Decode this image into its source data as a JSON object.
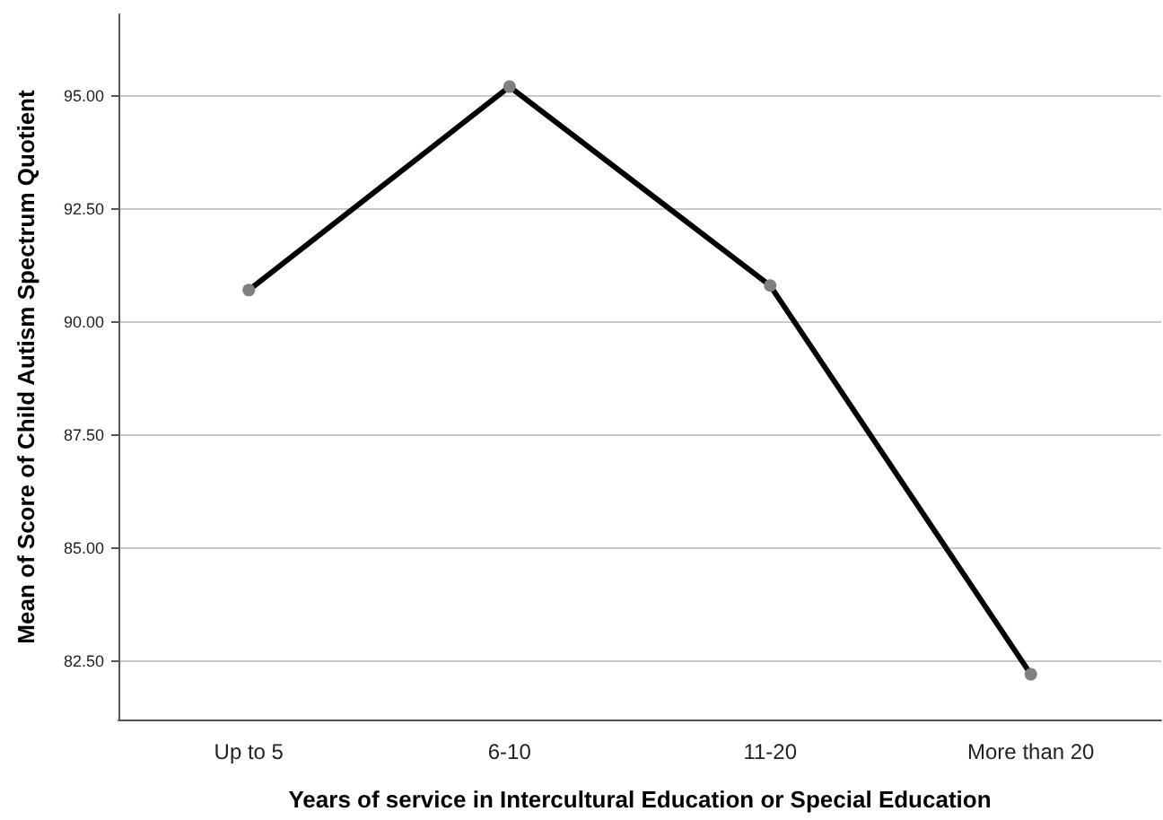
{
  "chart_data": {
    "type": "line",
    "xlabel": "Years of service in Intercultural Education or Special Education",
    "ylabel": "Mean of Score of Child Autism Spectrum Quotient",
    "categories": [
      "Up to 5",
      "6-10",
      "11-20",
      "More than 20"
    ],
    "series": [
      {
        "color": "#000000",
        "values": [
          90.7,
          95.2,
          90.8,
          82.2
        ]
      }
    ],
    "ylim": [
      81.2,
      96.8
    ],
    "yticks": [
      {
        "value": 82.5,
        "label": "82.50"
      },
      {
        "value": 85,
        "label": "85.00"
      },
      {
        "value": 87.5,
        "label": "87.50"
      },
      {
        "value": 90,
        "label": "90.00"
      },
      {
        "value": 92.5,
        "label": "92.50"
      },
      {
        "value": 95,
        "label": "95.00"
      }
    ],
    "grid": "y",
    "marker": "circle",
    "line_style": "solid"
  }
}
